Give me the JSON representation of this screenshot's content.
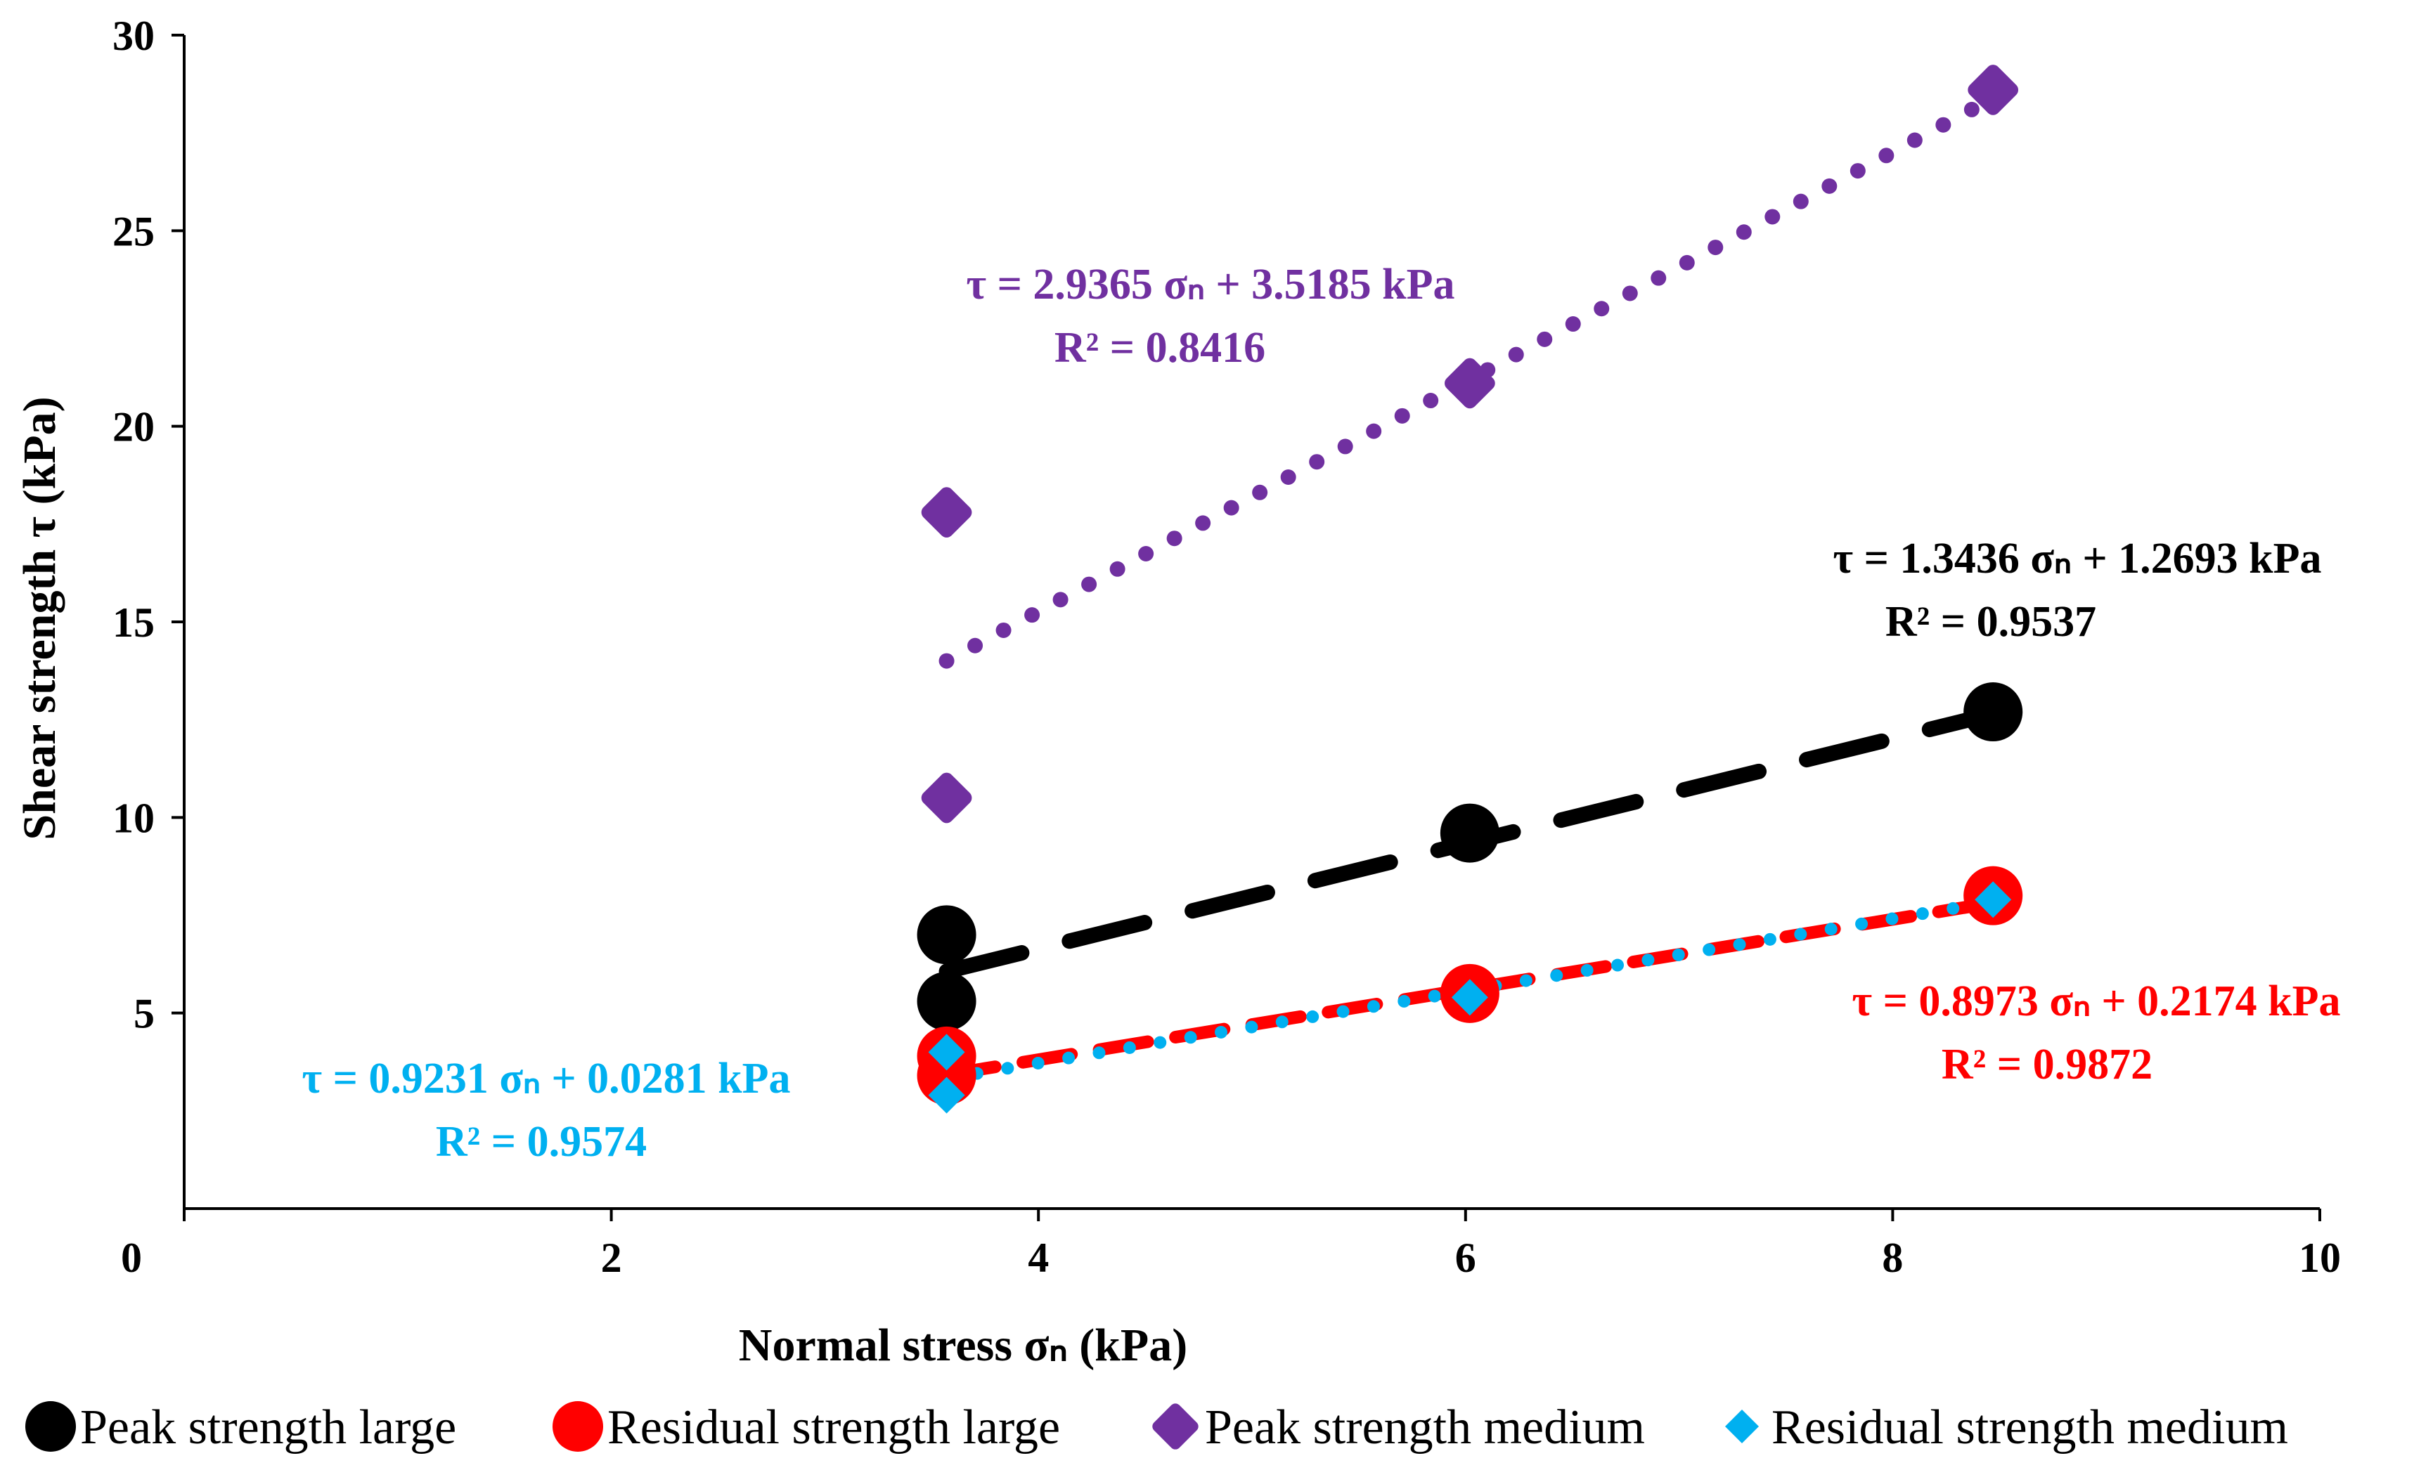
{
  "chart_data": {
    "type": "scatter",
    "title": "",
    "xlabel": "Normal stress σₙ (kPa)",
    "ylabel": "Shear strength τ (kPa)",
    "xlim": [
      0,
      10
    ],
    "ylim": [
      0,
      30
    ],
    "xticks": [
      0,
      2,
      4,
      6,
      8,
      10
    ],
    "yticks": [
      5,
      10,
      15,
      20,
      25,
      30
    ],
    "x_tick_labels": [
      "0",
      "2",
      "4",
      "6",
      "8",
      "10"
    ],
    "y_tick_labels": [
      "5",
      "10",
      "15",
      "20",
      "25",
      "30"
    ],
    "grid": false,
    "legend_position": "bottom",
    "series": [
      {
        "name": "Peak strength large",
        "marker": "circle",
        "color": "#000000",
        "points": [
          [
            3.57,
            7.0
          ],
          [
            3.57,
            5.3
          ],
          [
            6.02,
            9.6
          ],
          [
            8.47,
            12.7
          ]
        ],
        "trendline": {
          "slope": 1.3436,
          "intercept": 1.2693,
          "x_range": [
            3.57,
            8.47
          ],
          "style": "dash"
        },
        "equation": "τ = 1.3436 σₙ + 1.2693 kPa",
        "r2": "R² = 0.9537"
      },
      {
        "name": "Residual strength large",
        "marker": "circle",
        "color": "#ff0000",
        "points": [
          [
            3.57,
            3.9
          ],
          [
            3.57,
            3.4
          ],
          [
            6.02,
            5.5
          ],
          [
            8.47,
            8.0
          ]
        ],
        "trendline": {
          "slope": 0.8973,
          "intercept": 0.2174,
          "x_range": [
            3.57,
            8.47
          ],
          "style": "dash"
        },
        "equation": "τ = 0.8973 σₙ + 0.2174 kPa",
        "r2": "R² = 0.9872"
      },
      {
        "name": "Peak strength medium",
        "marker": "diamond",
        "color": "#7030a0",
        "points": [
          [
            3.57,
            17.8
          ],
          [
            3.57,
            10.5
          ],
          [
            6.02,
            21.1
          ],
          [
            8.47,
            28.6
          ]
        ],
        "trendline": {
          "slope": 2.9365,
          "intercept": 3.5185,
          "x_range": [
            3.57,
            8.47
          ],
          "style": "dot"
        },
        "equation": "τ = 2.9365 σₙ + 3.5185 kPa",
        "r2": "R² = 0.8416"
      },
      {
        "name": "Residual strength medium",
        "marker": "small-diamond",
        "color": "#00b0f0",
        "points": [
          [
            3.57,
            4.0
          ],
          [
            3.57,
            2.9
          ],
          [
            6.02,
            5.4
          ],
          [
            8.47,
            7.9
          ]
        ],
        "trendline": {
          "slope": 0.9231,
          "intercept": 0.0281,
          "x_range": [
            3.57,
            8.47
          ],
          "style": "dot"
        },
        "equation": "τ = 0.9231 σₙ + 0.0281 kPa",
        "r2": "R² = 0.9574"
      }
    ]
  }
}
